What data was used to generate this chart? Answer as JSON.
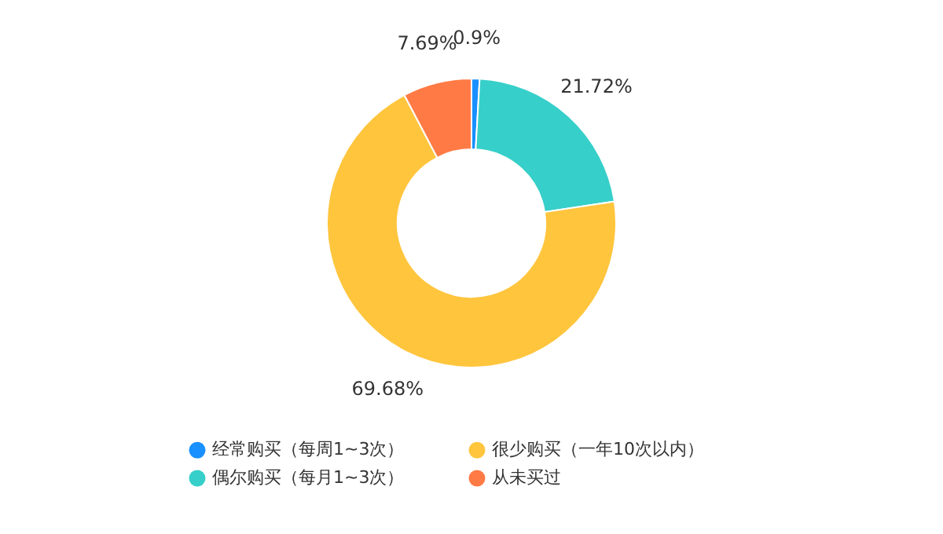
{
  "chart_data": {
    "type": "donut",
    "categories": [
      "经常购买（每周1~3次）",
      "偶尔购买（每月1~3次）",
      "很少购买（一年10次以内）",
      "从未买过"
    ],
    "values": [
      0.9,
      21.72,
      69.68,
      7.69
    ],
    "colors": [
      "#1890ff",
      "#36cfc9",
      "#ffc53d",
      "#ff7a45"
    ],
    "value_labels": [
      "0.9%",
      "21.72%",
      "69.68%",
      "7.69%"
    ],
    "legend": "bottom"
  }
}
